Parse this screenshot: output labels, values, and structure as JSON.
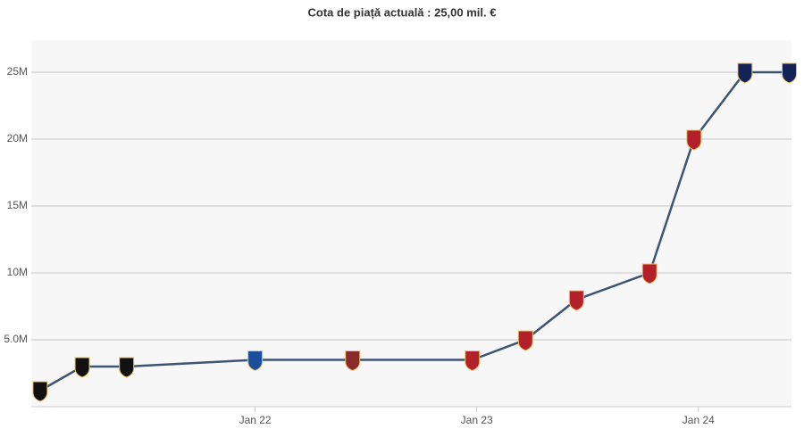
{
  "chart_data": {
    "type": "line",
    "title": "Cota de piață actuală : 25,00 mil. €",
    "x": [
      2021.03,
      2021.22,
      2021.42,
      2022.0,
      2022.44,
      2022.98,
      2023.22,
      2023.45,
      2023.78,
      2023.98,
      2024.21,
      2024.41
    ],
    "series": [
      {
        "color": "#3d5570",
        "values": [
          1.2,
          3,
          3,
          3.5,
          3.5,
          3.5,
          5,
          8,
          10,
          20,
          25,
          25
        ],
        "marker_colors": [
          "#111111",
          "#111111",
          "#111111",
          "#1b4f9c",
          "#8b2a2a",
          "#b3202a",
          "#b3202a",
          "#b3202a",
          "#b3202a",
          "#b3202a",
          "#132257",
          "#132257"
        ]
      }
    ],
    "xlim": [
      2020.99,
      2024.42
    ],
    "xticks": [
      {
        "value": 2022,
        "label": "Jan 22"
      },
      {
        "value": 2023,
        "label": "Jan 23"
      },
      {
        "value": 2024,
        "label": "Jan 24"
      }
    ],
    "ylim": [
      0,
      27.4
    ],
    "yticks": [
      {
        "value": 5,
        "label": "5.0M"
      },
      {
        "value": 10,
        "label": "10M"
      },
      {
        "value": 15,
        "label": "15M"
      },
      {
        "value": 20,
        "label": "20M"
      },
      {
        "value": 25,
        "label": "25M"
      }
    ],
    "grid": true
  }
}
